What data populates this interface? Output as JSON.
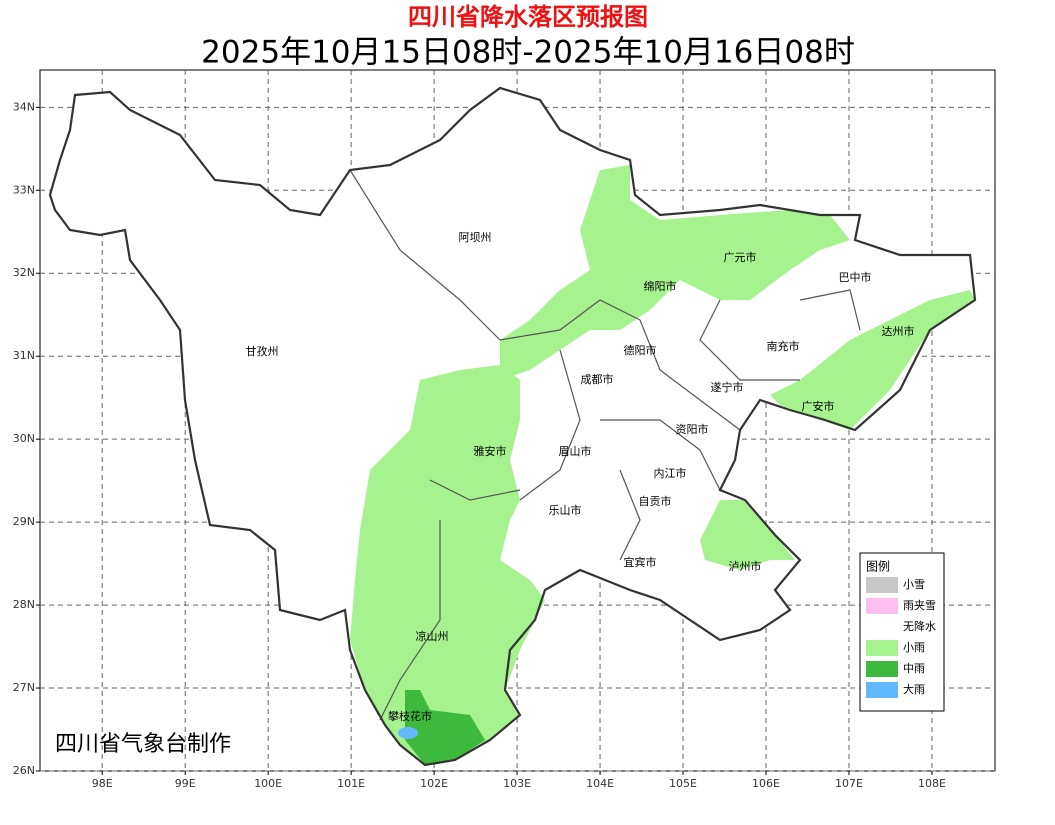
{
  "header": {
    "title": "四川省降水落区预报图",
    "subtitle": "2025年10月15日08时-2025年10月16日08时"
  },
  "map": {
    "xlim": [
      97.25,
      108.76
    ],
    "ylim": [
      26,
      34.45
    ],
    "xticks": [
      {
        "value": 98,
        "label": "98E"
      },
      {
        "value": 99,
        "label": "99E"
      },
      {
        "value": 100,
        "label": "100E"
      },
      {
        "value": 101,
        "label": "101E"
      },
      {
        "value": 102,
        "label": "102E"
      },
      {
        "value": 103,
        "label": "103E"
      },
      {
        "value": 104,
        "label": "104E"
      },
      {
        "value": 105,
        "label": "105E"
      },
      {
        "value": 106,
        "label": "106E"
      },
      {
        "value": 107,
        "label": "107E"
      },
      {
        "value": 108,
        "label": "108E"
      }
    ],
    "yticks": [
      {
        "value": 26,
        "label": "26N"
      },
      {
        "value": 27,
        "label": "27N"
      },
      {
        "value": 28,
        "label": "28N"
      },
      {
        "value": 29,
        "label": "29N"
      },
      {
        "value": 30,
        "label": "30N"
      },
      {
        "value": 31,
        "label": "31N"
      },
      {
        "value": 32,
        "label": "32N"
      },
      {
        "value": 33,
        "label": "33N"
      },
      {
        "value": 34,
        "label": "34N"
      }
    ],
    "grid": true,
    "cities": [
      "阿坝州",
      "甘孜州",
      "广元市",
      "巴中市",
      "绵阳市",
      "达州市",
      "南充市",
      "德阳市",
      "成都市",
      "遂宁市",
      "广安市",
      "资阳市",
      "雅安市",
      "眉山市",
      "内江市",
      "自贡市",
      "乐山市",
      "宜宾市",
      "泸州市",
      "凉山州",
      "攀枝花市"
    ]
  },
  "legend": {
    "title": "图例",
    "items": [
      {
        "label": "小雪",
        "color": "#c8c8c8"
      },
      {
        "label": "雨夹雪",
        "color": "#ffc0f0"
      },
      {
        "label": "无降水",
        "color": "#ffffff"
      },
      {
        "label": "小雨",
        "color": "#a6f28f"
      },
      {
        "label": "中雨",
        "color": "#3dba3d"
      },
      {
        "label": "大雨",
        "color": "#61b8ff"
      }
    ]
  },
  "credit": "四川省气象台制作"
}
